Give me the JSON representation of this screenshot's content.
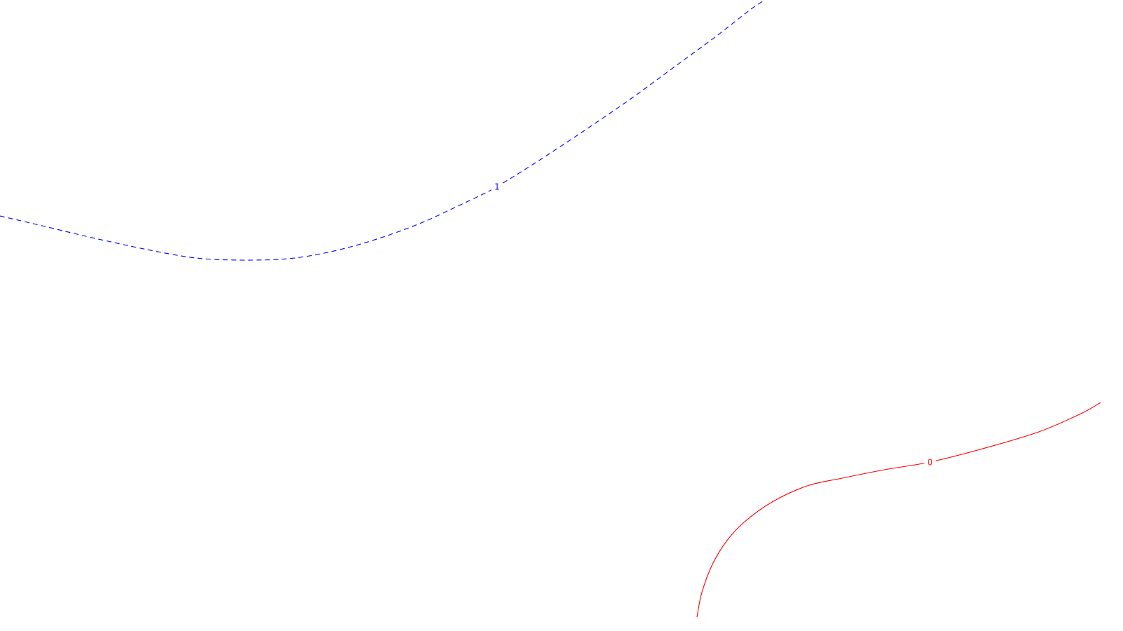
{
  "chart_data": {
    "type": "line",
    "title": "",
    "xlabel": "",
    "ylabel": "",
    "grid": false,
    "legend": "none",
    "series": [
      {
        "label": "1",
        "color": "#0000ff",
        "style": "dashed",
        "x": [
          0,
          60,
          140,
          230,
          290,
          360,
          420,
          480,
          540,
          600,
          650,
          690,
          710,
          760,
          830,
          900,
          960,
          1020,
          1070,
          1090
        ],
        "y": [
          308,
          322,
          341,
          360,
          369,
          371,
          368,
          357,
          340,
          318,
          295,
          276,
          265,
          234,
          188,
          140,
          96,
          52,
          13,
          0
        ]
      },
      {
        "label": "0",
        "color": "#ff0000",
        "style": "solid",
        "x": [
          993,
          1000,
          1015,
          1035,
          1060,
          1100,
          1150,
          1200,
          1260,
          1325,
          1400,
          1480,
          1540,
          1570
        ],
        "y": [
          880,
          845,
          805,
          772,
          745,
          716,
          693,
          682,
          670,
          659,
          640,
          616,
          590,
          573
        ]
      }
    ]
  }
}
